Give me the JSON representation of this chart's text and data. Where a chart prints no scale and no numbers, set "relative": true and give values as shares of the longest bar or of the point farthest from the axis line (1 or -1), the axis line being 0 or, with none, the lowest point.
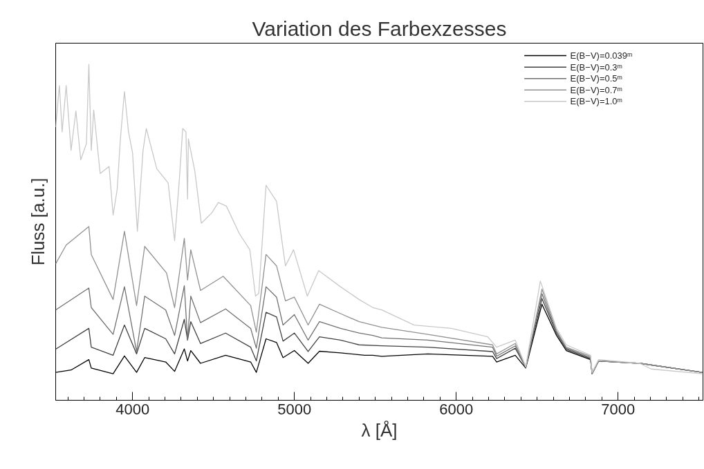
{
  "chart_data": {
    "type": "line",
    "title": "Variation des Farbexzesses",
    "xlabel": "λ [Å]",
    "ylabel": "Fluss [a.u.]",
    "relative": true,
    "xlim": [
      3525,
      7525
    ],
    "xticks": [
      4000,
      5000,
      6000,
      7000
    ],
    "grid": false,
    "legend": "top right",
    "line_style": "solid",
    "series": [
      {
        "name": "E(B−V)=0.039ᵐ",
        "color": "#000000",
        "x": [
          3525,
          3620,
          3730,
          3745,
          3880,
          3950,
          4025,
          4075,
          4205,
          4260,
          4320,
          4340,
          4360,
          4420,
          4575,
          4730,
          4765,
          4825,
          4890,
          4930,
          5000,
          5085,
          5155,
          5285,
          5435,
          5485,
          5540,
          5825,
          6225,
          6250,
          6365,
          6430,
          6530,
          6620,
          6680,
          6830,
          6840,
          6880,
          7135,
          7520
        ],
        "values": [
          0.083,
          0.09,
          0.121,
          0.096,
          0.079,
          0.132,
          0.083,
          0.127,
          0.114,
          0.086,
          0.153,
          0.117,
          0.148,
          0.11,
          0.134,
          0.114,
          0.083,
          0.183,
          0.172,
          0.127,
          0.148,
          0.11,
          0.146,
          0.141,
          0.134,
          0.134,
          0.131,
          0.138,
          0.131,
          0.114,
          0.134,
          0.096,
          0.286,
          0.193,
          0.148,
          0.121,
          0.079,
          0.117,
          0.11,
          0.083
        ]
      },
      {
        "name": "E(B−V)=0.3ᵐ",
        "color": "#404040",
        "x": [
          3525,
          3730,
          3745,
          3880,
          3950,
          4025,
          4075,
          4205,
          4260,
          4320,
          4340,
          4360,
          4420,
          4575,
          4730,
          4765,
          4825,
          4890,
          4930,
          5000,
          5085,
          5155,
          5285,
          5400,
          5540,
          5825,
          6225,
          6250,
          6365,
          6430,
          6530,
          6620,
          6680,
          6830,
          6840,
          6880,
          7135,
          7520
        ],
        "values": [
          0.152,
          0.214,
          0.158,
          0.134,
          0.224,
          0.138,
          0.214,
          0.183,
          0.138,
          0.241,
          0.179,
          0.234,
          0.169,
          0.2,
          0.158,
          0.117,
          0.262,
          0.248,
          0.176,
          0.2,
          0.145,
          0.189,
          0.179,
          0.165,
          0.162,
          0.158,
          0.145,
          0.124,
          0.155,
          0.098,
          0.303,
          0.2,
          0.152,
          0.124,
          0.079,
          0.117,
          0.11,
          0.083
        ]
      },
      {
        "name": "E(B−V)=0.5ᵐ",
        "color": "#707070",
        "x": [
          3525,
          3730,
          3745,
          3880,
          3950,
          4025,
          4075,
          4205,
          4260,
          4320,
          4340,
          4360,
          4420,
          4575,
          4730,
          4765,
          4825,
          4890,
          4930,
          5000,
          5085,
          5155,
          5285,
          5400,
          5485,
          5540,
          5825,
          6225,
          6250,
          6365,
          6430,
          6530,
          6620,
          6680,
          6830,
          6840,
          6880,
          7135,
          7520
        ],
        "values": [
          0.269,
          0.334,
          0.276,
          0.196,
          0.338,
          0.145,
          0.31,
          0.269,
          0.193,
          0.341,
          0.179,
          0.31,
          0.231,
          0.272,
          0.214,
          0.155,
          0.338,
          0.307,
          0.224,
          0.255,
          0.179,
          0.234,
          0.214,
          0.2,
          0.193,
          0.186,
          0.179,
          0.158,
          0.131,
          0.162,
          0.098,
          0.317,
          0.203,
          0.155,
          0.127,
          0.079,
          0.117,
          0.11,
          0.083
        ]
      },
      {
        "name": "E(B−V)=0.7ᵐ",
        "color": "#909090",
        "x": [
          3525,
          3590,
          3730,
          3745,
          3880,
          3950,
          4025,
          4075,
          4210,
          4260,
          4320,
          4340,
          4360,
          4420,
          4560,
          4730,
          4765,
          4825,
          4890,
          4945,
          5000,
          5085,
          5155,
          5285,
          5400,
          5540,
          5825,
          6225,
          6250,
          6365,
          6430,
          6530,
          6620,
          6680,
          6830,
          6840,
          6880,
          7135,
          7520
        ],
        "values": [
          0.406,
          0.462,
          0.517,
          0.434,
          0.3,
          0.503,
          0.282,
          0.458,
          0.379,
          0.276,
          0.482,
          0.358,
          0.448,
          0.327,
          0.369,
          0.282,
          0.203,
          0.434,
          0.4,
          0.296,
          0.307,
          0.224,
          0.286,
          0.258,
          0.234,
          0.217,
          0.196,
          0.165,
          0.138,
          0.169,
          0.098,
          0.331,
          0.207,
          0.158,
          0.131,
          0.079,
          0.117,
          0.11,
          0.083
        ]
      },
      {
        "name": "E(B−V)=1.0ᵐ",
        "color": "#c8c8c8",
        "x": [
          3525,
          3548,
          3565,
          3590,
          3620,
          3650,
          3680,
          3715,
          3730,
          3745,
          3760,
          3800,
          3855,
          3880,
          3905,
          3925,
          3950,
          3975,
          4000,
          4030,
          4065,
          4085,
          4150,
          4220,
          4260,
          4290,
          4310,
          4330,
          4340,
          4345,
          4385,
          4425,
          4490,
          4530,
          4580,
          4660,
          4725,
          4760,
          4780,
          4825,
          4890,
          4925,
          4945,
          4995,
          5080,
          5150,
          5285,
          5400,
          5485,
          5540,
          5740,
          5970,
          6195,
          6250,
          6365,
          6430,
          6520,
          6620,
          6680,
          6830,
          6840,
          6880,
          7135,
          7205,
          7520
        ],
        "values": [
          0.813,
          0.937,
          0.799,
          0.937,
          0.744,
          0.861,
          0.716,
          0.764,
          1.0,
          0.744,
          0.864,
          0.675,
          0.696,
          0.551,
          0.627,
          0.778,
          0.919,
          0.799,
          0.737,
          0.503,
          0.744,
          0.809,
          0.689,
          0.647,
          0.475,
          0.661,
          0.809,
          0.799,
          0.599,
          0.778,
          0.682,
          0.527,
          0.558,
          0.589,
          0.578,
          0.496,
          0.448,
          0.31,
          0.318,
          0.64,
          0.592,
          0.468,
          0.4,
          0.448,
          0.31,
          0.386,
          0.338,
          0.3,
          0.276,
          0.269,
          0.224,
          0.214,
          0.189,
          0.158,
          0.179,
          0.1,
          0.355,
          0.214,
          0.165,
          0.134,
          0.083,
          0.121,
          0.11,
          0.093,
          0.079
        ]
      }
    ]
  }
}
